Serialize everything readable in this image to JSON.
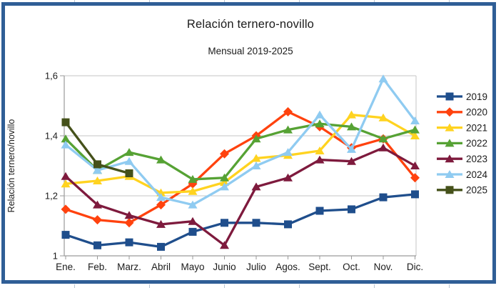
{
  "frame": {
    "selection_border_color": "#2f5e96"
  },
  "chart_data": {
    "type": "line",
    "title": "Relación ternero-novillo",
    "subtitle": "Mensual 2019-2025",
    "ylabel": "Relación ternero/novillo",
    "xlabel": "",
    "categories": [
      "Ene.",
      "Feb.",
      "Marz.",
      "Abril",
      "Mayo",
      "Junio",
      "Julio",
      "Agos.",
      "Sept.",
      "Oct.",
      "Nov.",
      "Dic."
    ],
    "ylim": [
      1.0,
      1.6
    ],
    "ytick_values": [
      1.0,
      1.2,
      1.4,
      1.6
    ],
    "ytick_labels": [
      "1",
      "1,2",
      "1,4",
      "1,6"
    ],
    "grid": "horizontal",
    "legend_position": "right",
    "series": [
      {
        "name": "2019",
        "color": "#1f4e8c",
        "marker": "square",
        "values": [
          1.07,
          1.035,
          1.045,
          1.03,
          1.08,
          1.11,
          1.11,
          1.105,
          1.15,
          1.155,
          1.195,
          1.205
        ]
      },
      {
        "name": "2020",
        "color": "#ff420e",
        "marker": "diamond",
        "values": [
          1.155,
          1.12,
          1.11,
          1.17,
          1.24,
          1.34,
          1.4,
          1.48,
          1.43,
          1.36,
          1.39,
          1.26
        ]
      },
      {
        "name": "2021",
        "color": "#ffd320",
        "marker": "triangle",
        "values": [
          1.24,
          1.25,
          1.265,
          1.21,
          1.215,
          1.245,
          1.325,
          1.335,
          1.35,
          1.47,
          1.46,
          1.4
        ]
      },
      {
        "name": "2022",
        "color": "#56a234",
        "marker": "triangle",
        "values": [
          1.39,
          1.285,
          1.345,
          1.32,
          1.255,
          1.26,
          1.39,
          1.42,
          1.44,
          1.43,
          1.39,
          1.42
        ]
      },
      {
        "name": "2023",
        "color": "#7e1a3d",
        "marker": "triangle",
        "values": [
          1.265,
          1.17,
          1.135,
          1.105,
          1.115,
          1.035,
          1.23,
          1.26,
          1.32,
          1.315,
          1.36,
          1.3
        ]
      },
      {
        "name": "2024",
        "color": "#8fcbf1",
        "marker": "triangle",
        "values": [
          1.37,
          1.285,
          1.315,
          1.195,
          1.17,
          1.23,
          1.3,
          1.345,
          1.47,
          1.355,
          1.59,
          1.45
        ]
      },
      {
        "name": "2025",
        "color": "#45511a",
        "marker": "square",
        "values": [
          1.445,
          1.305,
          1.275,
          null,
          null,
          null,
          null,
          null,
          null,
          null,
          null,
          null
        ]
      }
    ]
  }
}
